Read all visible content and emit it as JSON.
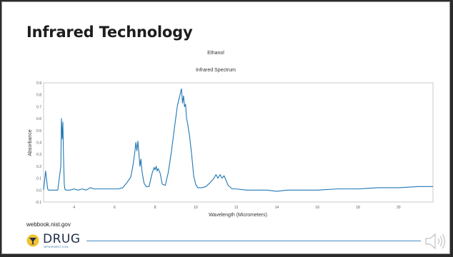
{
  "slide": {
    "title": "Infrared Technology",
    "source": "webbook.nist.gov",
    "logo": {
      "word": "DRUG",
      "sub": "IMPAIRMENT.COM"
    }
  },
  "colors": {
    "line": "#1f77b4",
    "footer_line": "#4a8cc4",
    "title": "#1d1d1d"
  },
  "chart_data": {
    "type": "line",
    "title": "Ethanol",
    "subtitle": "Infrared Spectrum",
    "xlabel": "Wavelength (Micrometers)",
    "ylabel": "Absorbance",
    "xlim": [
      2.5,
      21.7
    ],
    "ylim": [
      -0.1,
      0.9
    ],
    "grid": false,
    "legend": "none",
    "x_ticks": [
      "4",
      "6",
      "8",
      "10",
      "12",
      "14",
      "16",
      "18",
      "20"
    ],
    "y_ticks": [
      "-0.1",
      "0.0",
      "0.1",
      "0.2",
      "0.3",
      "0.4",
      "0.5",
      "0.6",
      "0.7",
      "0.8",
      "0.9"
    ],
    "series": [
      {
        "x": [
          2.5,
          2.6,
          2.7,
          2.75,
          2.8,
          2.85,
          2.9,
          3.0,
          3.2,
          3.35,
          3.38,
          3.42,
          3.45,
          3.48,
          3.52,
          3.55,
          3.6,
          3.7,
          3.8,
          4.0,
          4.2,
          4.4,
          4.6,
          4.8,
          5.0,
          5.2,
          5.4,
          5.6,
          5.8,
          6.0,
          6.2,
          6.4,
          6.6,
          6.8,
          6.9,
          7.0,
          7.05,
          7.1,
          7.15,
          7.2,
          7.25,
          7.3,
          7.35,
          7.45,
          7.55,
          7.7,
          7.85,
          7.95,
          8.0,
          8.05,
          8.1,
          8.15,
          8.25,
          8.35,
          8.5,
          8.65,
          8.8,
          8.95,
          9.1,
          9.2,
          9.3,
          9.35,
          9.4,
          9.45,
          9.5,
          9.55,
          9.6,
          9.7,
          9.8,
          9.9,
          10.0,
          10.1,
          10.2,
          10.3,
          10.5,
          10.7,
          10.9,
          11.0,
          11.1,
          11.2,
          11.3,
          11.4,
          11.5,
          11.6,
          11.8,
          12.0,
          12.5,
          13.0,
          13.5,
          14.0,
          14.5,
          15.0,
          16.0,
          17.0,
          18.0,
          19.0,
          20.0,
          21.0,
          21.7
        ],
        "y": [
          0.0,
          0.16,
          0.01,
          0.0,
          0.0,
          0.0,
          0.0,
          0.0,
          0.0,
          0.2,
          0.6,
          0.43,
          0.57,
          0.3,
          0.05,
          0.01,
          0.0,
          0.0,
          0.0,
          0.01,
          0.0,
          0.01,
          0.0,
          0.02,
          0.01,
          0.01,
          0.01,
          0.01,
          0.01,
          0.01,
          0.01,
          0.02,
          0.06,
          0.11,
          0.2,
          0.32,
          0.4,
          0.33,
          0.41,
          0.31,
          0.2,
          0.26,
          0.16,
          0.06,
          0.03,
          0.03,
          0.14,
          0.19,
          0.17,
          0.2,
          0.16,
          0.18,
          0.14,
          0.05,
          0.04,
          0.15,
          0.32,
          0.52,
          0.71,
          0.78,
          0.85,
          0.73,
          0.79,
          0.7,
          0.72,
          0.6,
          0.56,
          0.45,
          0.3,
          0.12,
          0.05,
          0.02,
          0.02,
          0.02,
          0.03,
          0.06,
          0.1,
          0.13,
          0.1,
          0.13,
          0.1,
          0.12,
          0.08,
          0.04,
          0.01,
          0.01,
          0.0,
          0.0,
          0.0,
          -0.01,
          0.0,
          0.0,
          0.0,
          0.01,
          0.01,
          0.02,
          0.02,
          0.03,
          0.03
        ]
      }
    ]
  }
}
